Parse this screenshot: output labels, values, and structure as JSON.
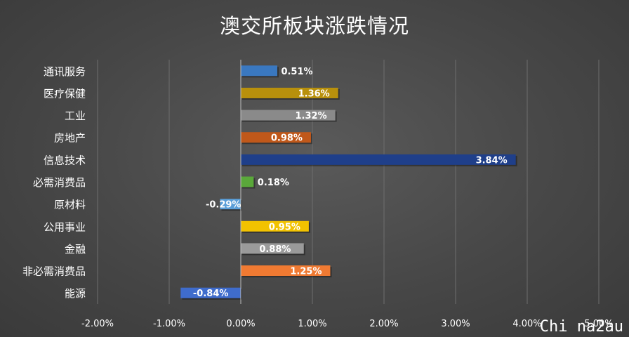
{
  "chart_data": {
    "type": "bar",
    "orientation": "horizontal",
    "title": "澳交所板块涨跌情况",
    "categories": [
      "通讯服务",
      "医疗保健",
      "工业",
      "房地产",
      "信息技术",
      "必需消费品",
      "原材料",
      "公用事业",
      "金融",
      "非必需消费品",
      "能源"
    ],
    "values": [
      0.51,
      1.36,
      1.32,
      0.98,
      3.84,
      0.18,
      -0.29,
      0.95,
      0.88,
      1.25,
      -0.84
    ],
    "data_labels": [
      "0.51%",
      "1.36%",
      "1.32%",
      "0.98%",
      "3.84%",
      "0.18%",
      "-0.29%",
      "0.95%",
      "0.88%",
      "1.25%",
      "-0.84%"
    ],
    "bar_colors": [
      "#3a78c0",
      "#b8900c",
      "#8a8a8a",
      "#c0581a",
      "#1f3f8a",
      "#5aa83a",
      "#5a9ed8",
      "#f2c200",
      "#9a9a9a",
      "#f07a32",
      "#3f6ccc"
    ],
    "xlim": [
      -2,
      5
    ],
    "xticks": [
      -2,
      -1,
      0,
      1,
      2,
      3,
      4,
      5
    ],
    "xtick_labels": [
      "-2.00%",
      "-1.00%",
      "0.00%",
      "1.00%",
      "2.00%",
      "3.00%",
      "4.00%",
      "5.00%"
    ],
    "xlabel": "",
    "ylabel": "",
    "grid": "vertical",
    "legend": "none"
  },
  "watermark": "Chi na2au"
}
